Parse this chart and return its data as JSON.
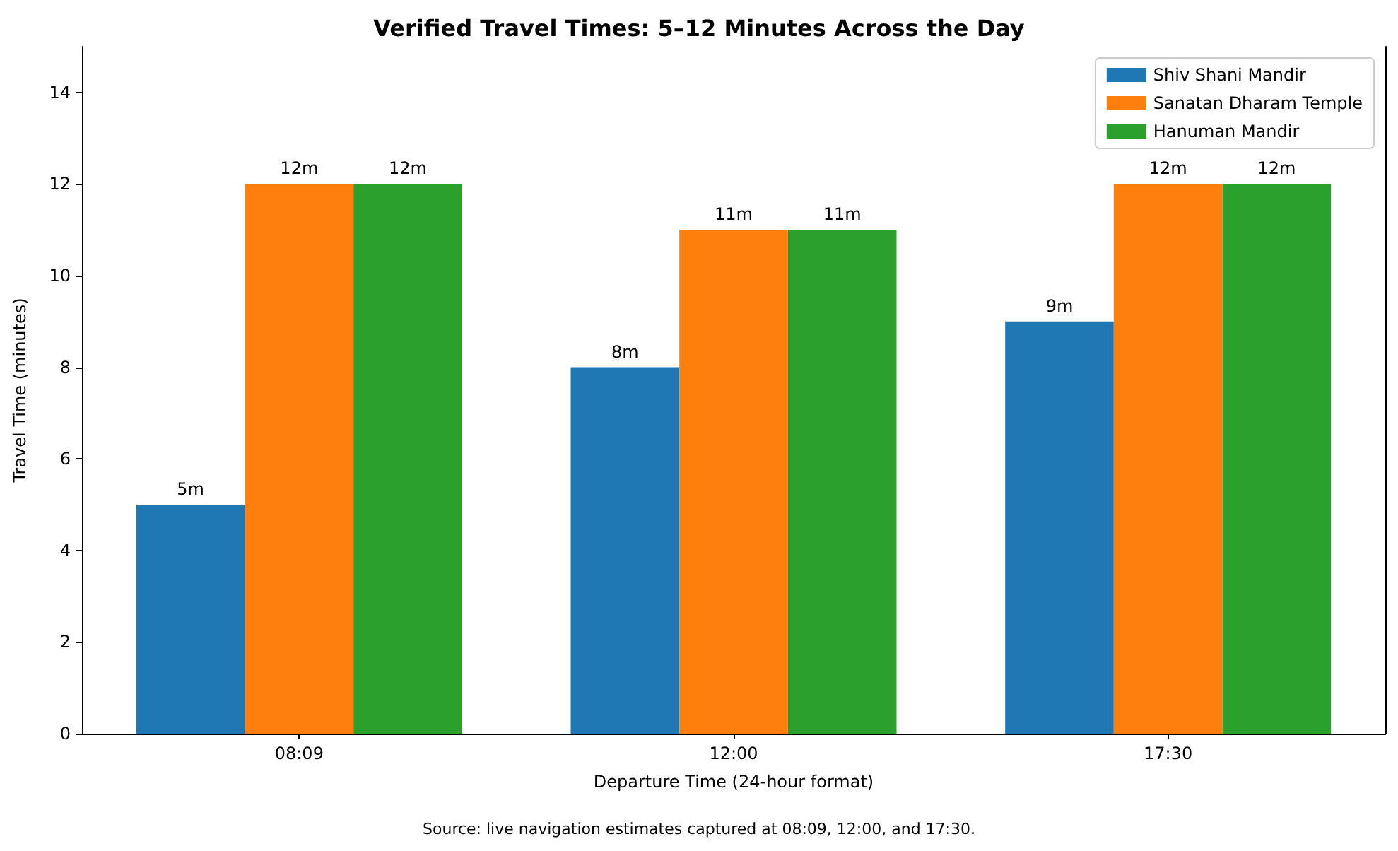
{
  "chart_data": {
    "type": "bar",
    "title": "Verified Travel Times: 5–12 Minutes Across the Day",
    "xlabel": "Departure Time (24-hour format)",
    "ylabel": "Travel Time (minutes)",
    "categories": [
      "08:09",
      "12:00",
      "17:30"
    ],
    "series": [
      {
        "name": "Shiv Shani Mandir",
        "color": "#1f77b4",
        "values": [
          5,
          8,
          9
        ],
        "value_labels": [
          "5m",
          "8m",
          "9m"
        ]
      },
      {
        "name": "Sanatan Dharam Temple",
        "color": "#ff7f0e",
        "values": [
          12,
          11,
          12
        ],
        "value_labels": [
          "12m",
          "11m",
          "12m"
        ]
      },
      {
        "name": "Hanuman Mandir",
        "color": "#2ca02c",
        "values": [
          12,
          11,
          12
        ],
        "value_labels": [
          "12m",
          "11m",
          "12m"
        ]
      }
    ],
    "ylim": [
      0,
      15
    ],
    "yticks": [
      0,
      2,
      4,
      6,
      8,
      10,
      12,
      14
    ],
    "grid": false,
    "legend": "top right",
    "annotations": [
      "Source: live navigation estimates captured at 08:09, 12:00, and 17:30."
    ]
  }
}
